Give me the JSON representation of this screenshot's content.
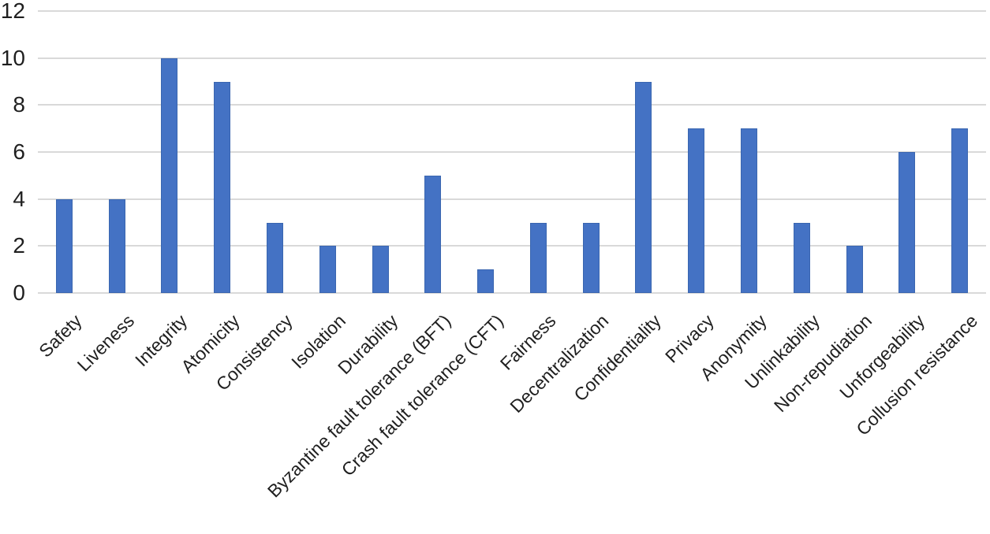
{
  "chart_data": {
    "type": "bar",
    "title": "",
    "xlabel": "",
    "ylabel": "",
    "categories": [
      "Safety",
      "Liveness",
      "Integrity",
      "Atomicity",
      "Consistency",
      "Isolation",
      "Durability",
      "Byzantine fault tolerance (BFT)",
      "Crash fault tolerance (CFT)",
      "Fairness",
      "Decentralization",
      "Confidentiality",
      "Privacy",
      "Anonymity",
      "Unlinkability",
      "Non-repudiation",
      "Unforgeability",
      "Collusion resistance"
    ],
    "values": [
      4,
      4,
      10,
      9,
      3,
      2,
      2,
      5,
      1,
      3,
      3,
      9,
      7,
      7,
      3,
      2,
      6,
      7
    ],
    "ylim": [
      0,
      12
    ],
    "yticks": [
      0,
      2,
      4,
      6,
      8,
      10,
      12
    ],
    "grid": "horizontal",
    "legend": "none",
    "colors": {
      "bar_fill": "#4472C4",
      "bar_border": "#3A66B0",
      "gridline": "#D9D9D9",
      "text": "#1F1F1F",
      "background": "#FFFFFF"
    }
  }
}
